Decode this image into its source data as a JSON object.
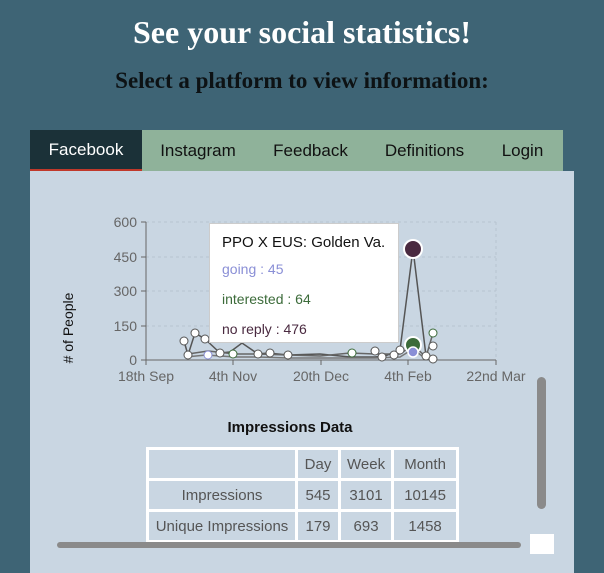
{
  "header": {
    "title": "See your social statistics!",
    "subtitle": "Select a platform to view information:"
  },
  "tabs": [
    {
      "label": "Facebook",
      "active": true
    },
    {
      "label": "Instagram",
      "active": false
    },
    {
      "label": "Feedback",
      "active": false
    },
    {
      "label": "Definitions",
      "active": false
    },
    {
      "label": "Login",
      "active": false
    }
  ],
  "chart_data": {
    "type": "line",
    "ylabel": "# of People",
    "ylim": [
      0,
      600
    ],
    "yticks": [
      "0",
      "150",
      "300",
      "450",
      "600"
    ],
    "xticks": [
      "18th Sep",
      "4th Nov",
      "20th Dec",
      "4th Feb",
      "22nd Mar"
    ],
    "series": [
      {
        "name": "going",
        "color": "#8a8fd6"
      },
      {
        "name": "interested",
        "color": "#3c6b3a"
      },
      {
        "name": "no reply",
        "color": "#4a2a40"
      }
    ],
    "tooltip": {
      "title": "PPO X EUS: Golden Va...",
      "rows": [
        {
          "label": "going : 45",
          "color": "#8a8fd6"
        },
        {
          "label": "interested : 64",
          "color": "#3c6b3a"
        },
        {
          "label": "no reply : 476",
          "color": "#4a2a40"
        }
      ]
    }
  },
  "impressions": {
    "title": "Impressions Data",
    "headers": [
      "",
      "Day",
      "Week",
      "Month"
    ],
    "rows": [
      [
        "Impressions",
        "545",
        "3101",
        "10145"
      ],
      [
        "Unique Impressions",
        "179",
        "693",
        "1458"
      ]
    ]
  }
}
